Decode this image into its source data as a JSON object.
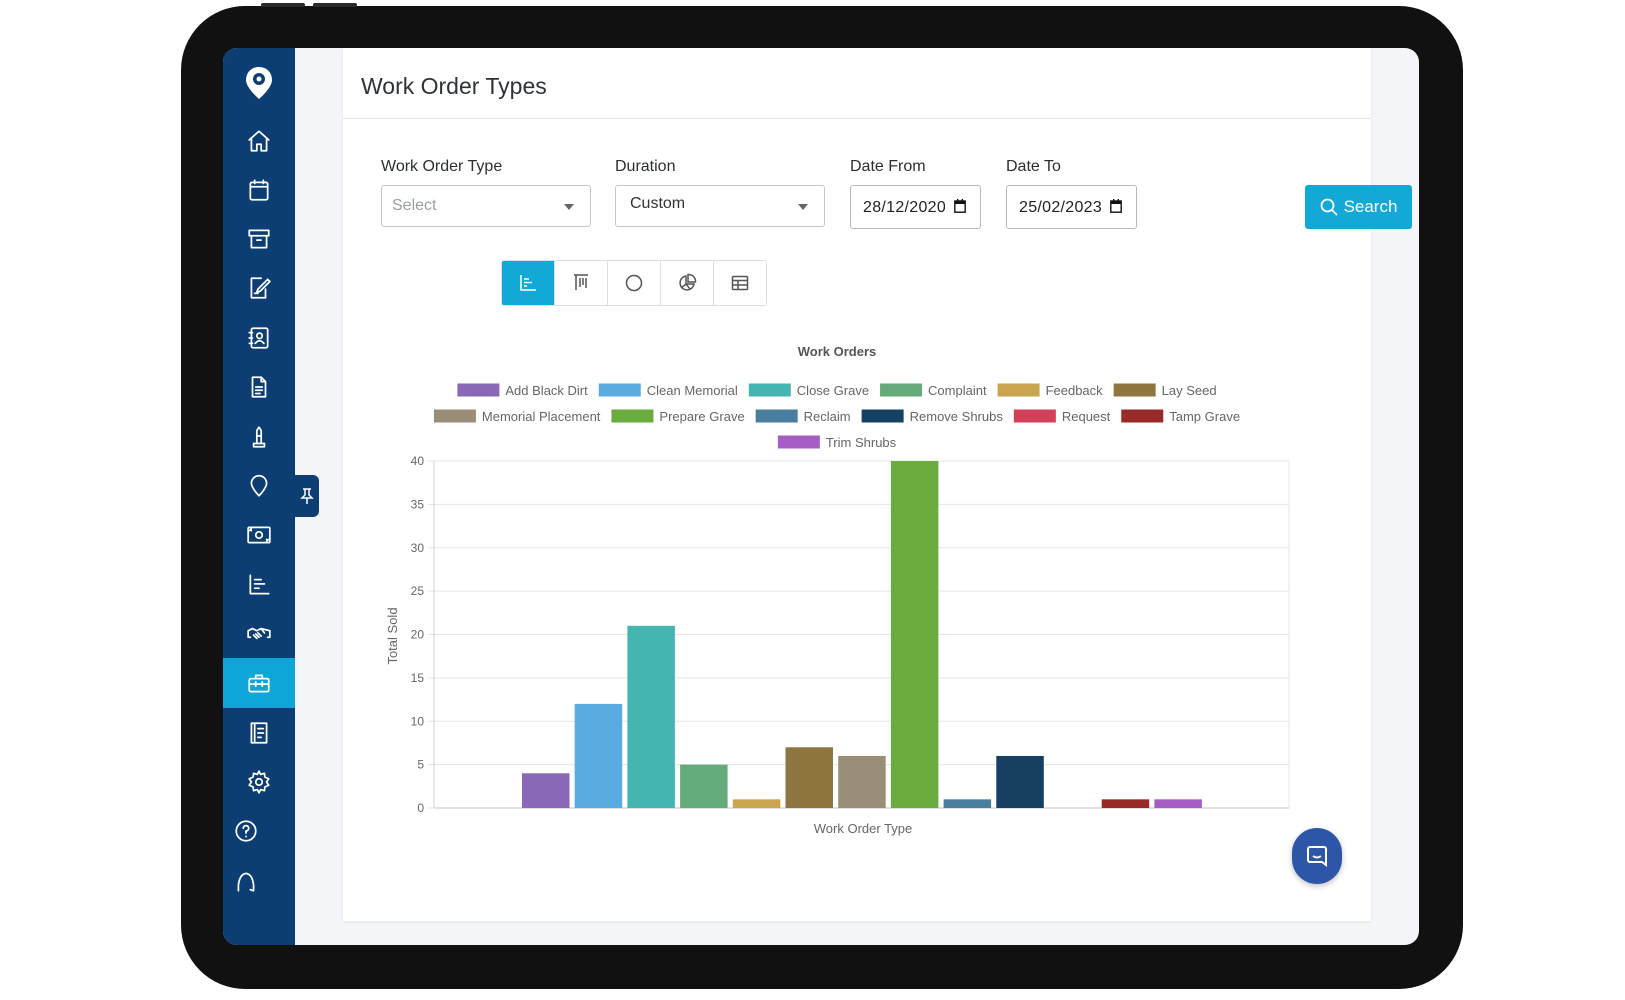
{
  "sidebar": {
    "items": [
      {
        "name": "home-icon",
        "active": false
      },
      {
        "name": "calendar-icon",
        "active": false
      },
      {
        "name": "archive-icon",
        "active": false
      },
      {
        "name": "edit-document-icon",
        "active": false
      },
      {
        "name": "contacts-icon",
        "active": false
      },
      {
        "name": "document-icon",
        "active": false
      },
      {
        "name": "monument-icon",
        "active": false
      },
      {
        "name": "map-pin-icon",
        "active": false
      },
      {
        "name": "money-icon",
        "active": false
      },
      {
        "name": "chart-icon",
        "active": false
      },
      {
        "name": "handshake-icon",
        "active": false
      },
      {
        "name": "toolbox-icon",
        "active": true
      },
      {
        "name": "book-icon",
        "active": false
      },
      {
        "name": "gear-icon",
        "active": false
      },
      {
        "name": "help-icon",
        "active": false
      },
      {
        "name": "logout-arch-icon",
        "active": false
      }
    ],
    "accent": "#0ea6d8",
    "background": "#0c3d73"
  },
  "page": {
    "title": "Work Order Types"
  },
  "filters": {
    "work_order_type": {
      "label": "Work Order Type",
      "placeholder": "Select"
    },
    "duration": {
      "label": "Duration",
      "value": "Custom"
    },
    "date_from": {
      "label": "Date From",
      "value": "28/12/2020"
    },
    "date_to": {
      "label": "Date To",
      "value": "25/02/2023"
    },
    "search_label": "Search"
  },
  "view_toggle": {
    "options": [
      "bar-chart-icon",
      "column-chart-icon",
      "doughnut-chart-icon",
      "pie-chart-icon",
      "table-icon"
    ],
    "active": "bar-chart-icon"
  },
  "chart_data": {
    "type": "bar",
    "title": "Work Orders",
    "xlabel": "Work Order Type",
    "ylabel": "Total Sold",
    "ylim": [
      0,
      40
    ],
    "yticks": [
      0,
      5,
      10,
      15,
      20,
      25,
      30,
      35,
      40
    ],
    "grid": true,
    "legend": "top",
    "series": [
      {
        "name": "Add Black Dirt",
        "value": 4,
        "color": "#8a68b8"
      },
      {
        "name": "Clean Memorial",
        "value": 12,
        "color": "#5aace0"
      },
      {
        "name": "Close Grave",
        "value": 21,
        "color": "#45b5b0"
      },
      {
        "name": "Complaint",
        "value": 5,
        "color": "#65ab7a"
      },
      {
        "name": "Feedback",
        "value": 1,
        "color": "#caa54d"
      },
      {
        "name": "Lay Seed",
        "value": 7,
        "color": "#8e7640"
      },
      {
        "name": "Memorial Placement",
        "value": 6,
        "color": "#9a8e78"
      },
      {
        "name": "Prepare Grave",
        "value": 40,
        "color": "#6aad3e"
      },
      {
        "name": "Reclaim",
        "value": 1,
        "color": "#4a7e9e"
      },
      {
        "name": "Remove Shrubs",
        "value": 6,
        "color": "#163f62"
      },
      {
        "name": "Request",
        "value": 0,
        "color": "#d2405a"
      },
      {
        "name": "Tamp Grave",
        "value": 1,
        "color": "#982b28"
      },
      {
        "name": "Trim Shrubs",
        "value": 1,
        "color": "#a55ec4"
      }
    ]
  }
}
